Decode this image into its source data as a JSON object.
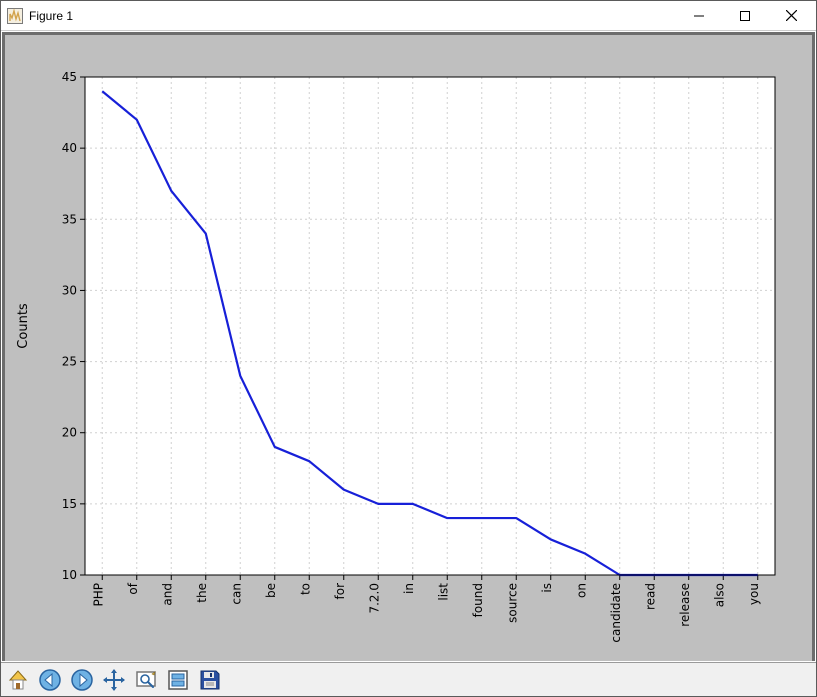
{
  "window": {
    "title": "Figure 1",
    "icon_bars_color": "#d2a24c",
    "icon_border_color": "#7a7a7a",
    "control_colors": {
      "stroke": "#000000"
    }
  },
  "figure": {
    "outer_bg": "#bfbfbf",
    "outer_border": "#6d6d6d",
    "plot_bg": "#ffffff",
    "plot_border": "#000000",
    "grid_color": "#d0d0d0",
    "grid_dash": "2,3",
    "line_color": "#1720d8",
    "line_width": 2.2,
    "ylabel": "Counts",
    "ylabel_fontsize": 13,
    "tick_fontsize": 12,
    "x_categories": [
      "PHP",
      "of",
      "and",
      "the",
      "can",
      "be",
      "to",
      "for",
      "7.2.0",
      "in",
      "list",
      "found",
      "source",
      "is",
      "on",
      "candidate",
      "read",
      "release",
      "also",
      "you"
    ],
    "y_values": [
      44,
      42,
      37,
      34,
      24,
      19,
      18,
      16,
      15,
      15,
      14,
      14,
      14,
      12.5,
      11.5,
      10,
      10,
      10,
      10,
      10
    ],
    "ylim": [
      10,
      45
    ],
    "ytick_step": 5,
    "yticks": [
      10,
      15,
      20,
      25,
      30,
      35,
      40,
      45
    ]
  },
  "toolbar": {
    "buttons": [
      {
        "name": "home-button",
        "icon": "home"
      },
      {
        "name": "back-button",
        "icon": "arrow-left"
      },
      {
        "name": "forward-button",
        "icon": "arrow-right"
      },
      {
        "name": "pan-button",
        "icon": "move"
      },
      {
        "name": "zoom-button",
        "icon": "zoom-rect"
      },
      {
        "name": "subplots-button",
        "icon": "configure"
      },
      {
        "name": "save-button",
        "icon": "save"
      }
    ],
    "icon_stroke": "#2a64a0",
    "icon_fill": "#6fb2e4",
    "home_roof": "#f2c54a",
    "home_wall": "#ffffff",
    "save_body": "#2a50a0",
    "save_label": "#e8e8e8"
  }
}
